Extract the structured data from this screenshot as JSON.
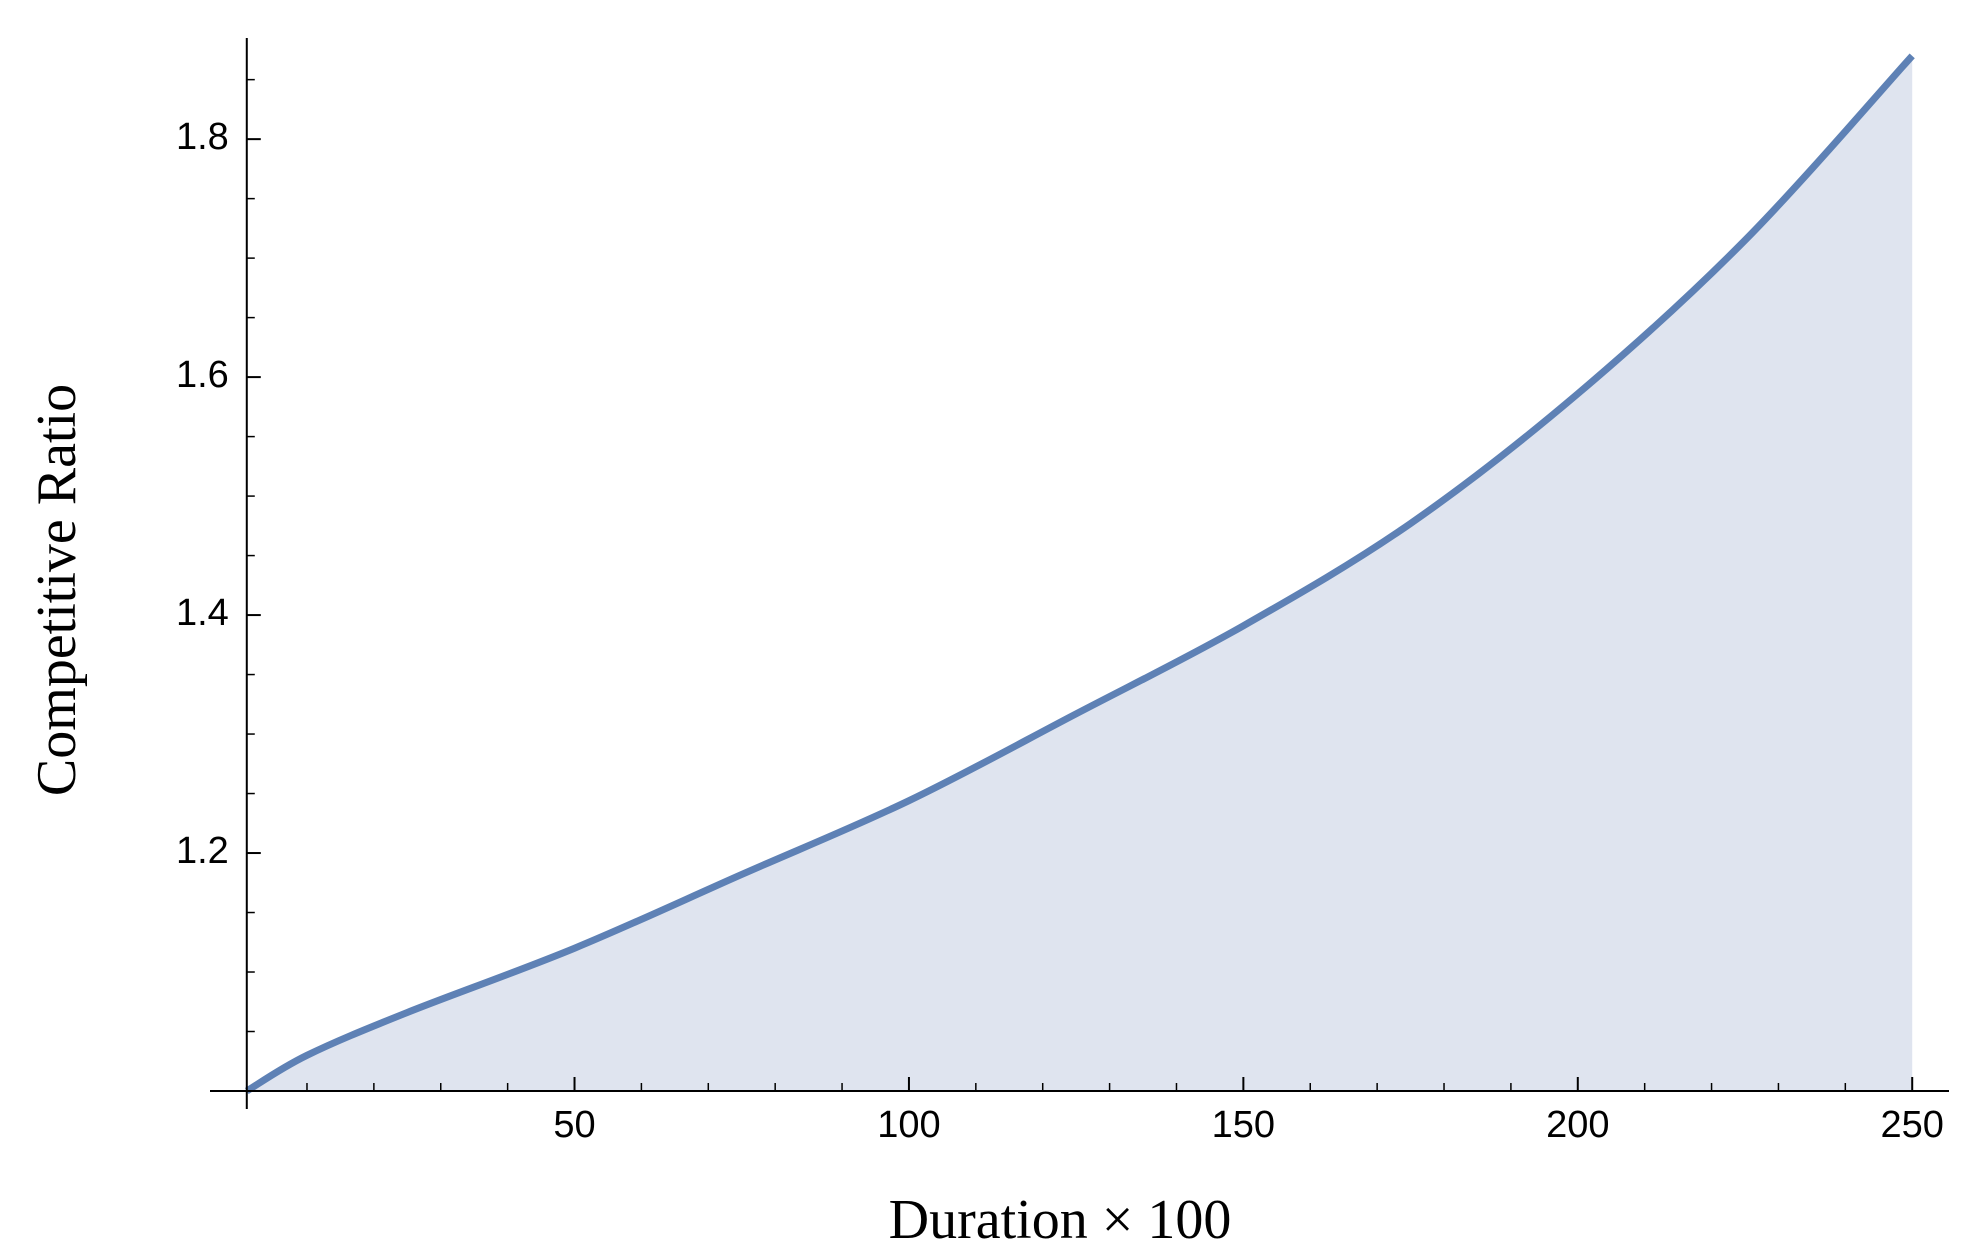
{
  "chart_data": {
    "type": "area",
    "x_label": "Duration × 100",
    "y_label": "Competitive Ratio",
    "x": [
      1,
      10,
      25,
      50,
      75,
      100,
      125,
      150,
      175,
      200,
      225,
      250
    ],
    "series": [
      {
        "name": "Competitive Ratio",
        "color": "#5e81b5",
        "fill": "#dfe4ef",
        "values": [
          1.0,
          1.03,
          1.066,
          1.12,
          1.182,
          1.244,
          1.317,
          1.391,
          1.477,
          1.586,
          1.715,
          1.87
        ]
      }
    ],
    "xlim": [
      -4.5,
      255.5
    ],
    "ylim": [
      1.0,
      1.885
    ],
    "xticks": [
      50,
      100,
      150,
      200,
      250
    ],
    "yticks": [
      1.2,
      1.4,
      1.6,
      1.8
    ],
    "xminorticks": [
      10,
      20,
      30,
      40,
      60,
      70,
      80,
      90,
      110,
      120,
      130,
      140,
      160,
      170,
      180,
      190,
      210,
      220,
      230,
      240
    ],
    "yminorticks": [
      1.05,
      1.1,
      1.15,
      1.25,
      1.3,
      1.35,
      1.45,
      1.5,
      1.55,
      1.65,
      1.7,
      1.75,
      1.85
    ],
    "grid": false
  }
}
